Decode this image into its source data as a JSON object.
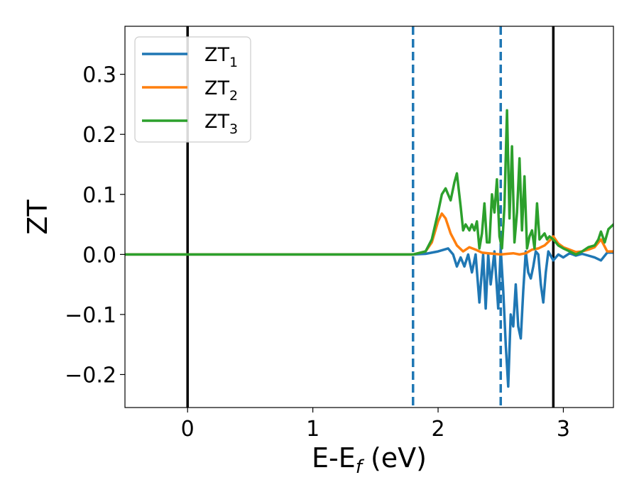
{
  "chart_data": {
    "type": "line",
    "xlabel": "E-E",
    "xlabel_sub": "f",
    "xlabel_unit": " (eV)",
    "ylabel": "ZT",
    "xlim": [
      -0.5,
      3.4
    ],
    "ylim": [
      -0.255,
      0.38
    ],
    "xticks": [
      0,
      1,
      2,
      3
    ],
    "xtick_labels": [
      "0",
      "1",
      "2",
      "3"
    ],
    "yticks": [
      -0.2,
      -0.1,
      0.0,
      0.1,
      0.2,
      0.3
    ],
    "ytick_labels": [
      "−0.2",
      "−0.1",
      "0.0",
      "0.1",
      "0.2",
      "0.3"
    ],
    "grid": false,
    "legend_position": "upper-left",
    "vlines": [
      {
        "x": 0.0,
        "style": "solid",
        "color": "#000000"
      },
      {
        "x": 1.8,
        "style": "dashed",
        "color": "#1f77b4"
      },
      {
        "x": 2.5,
        "style": "dashed",
        "color": "#1f77b4"
      },
      {
        "x": 2.92,
        "style": "solid",
        "color": "#000000"
      }
    ],
    "series": [
      {
        "name": "ZT",
        "sub": "1",
        "color": "#1f77b4",
        "x": [
          -0.5,
          1.8,
          1.9,
          2.0,
          2.08,
          2.12,
          2.15,
          2.18,
          2.21,
          2.24,
          2.27,
          2.3,
          2.33,
          2.36,
          2.38,
          2.4,
          2.42,
          2.45,
          2.48,
          2.5,
          2.52,
          2.54,
          2.56,
          2.58,
          2.6,
          2.62,
          2.64,
          2.66,
          2.68,
          2.7,
          2.72,
          2.74,
          2.76,
          2.78,
          2.8,
          2.82,
          2.84,
          2.86,
          2.88,
          2.92,
          2.96,
          3.0,
          3.05,
          3.1,
          3.15,
          3.2,
          3.25,
          3.3,
          3.35,
          3.4
        ],
        "y": [
          0,
          0,
          0.001,
          0.005,
          0.01,
          0.0,
          -0.02,
          -0.005,
          -0.02,
          0.0,
          -0.03,
          0.0,
          -0.08,
          0.0,
          -0.09,
          0.0,
          -0.05,
          0.005,
          -0.09,
          0.01,
          -0.06,
          -0.15,
          -0.22,
          -0.1,
          -0.12,
          -0.05,
          -0.12,
          -0.14,
          -0.06,
          0.005,
          -0.03,
          -0.04,
          -0.02,
          0.005,
          0.0,
          -0.05,
          -0.08,
          -0.03,
          0.005,
          -0.01,
          0.0,
          -0.005,
          0.002,
          -0.002,
          0.001,
          -0.002,
          -0.005,
          -0.01,
          0.003,
          0.003
        ]
      },
      {
        "name": "ZT",
        "sub": "2",
        "color": "#ff7f0e",
        "x": [
          -0.5,
          1.8,
          1.9,
          1.95,
          2.0,
          2.03,
          2.06,
          2.1,
          2.15,
          2.2,
          2.25,
          2.3,
          2.35,
          2.4,
          2.45,
          2.5,
          2.55,
          2.6,
          2.65,
          2.7,
          2.75,
          2.8,
          2.85,
          2.9,
          2.92,
          2.96,
          3.0,
          3.05,
          3.1,
          3.15,
          3.2,
          3.25,
          3.3,
          3.35,
          3.4
        ],
        "y": [
          0,
          0,
          0.005,
          0.02,
          0.055,
          0.068,
          0.06,
          0.035,
          0.015,
          0.005,
          0.012,
          0.008,
          0.003,
          0.002,
          0.001,
          0.0,
          0.001,
          0.002,
          0.0,
          0.002,
          0.008,
          0.01,
          0.015,
          0.025,
          0.03,
          0.018,
          0.012,
          0.008,
          0.004,
          0.005,
          0.008,
          0.012,
          0.025,
          0.005,
          0.005
        ]
      },
      {
        "name": "ZT",
        "sub": "3",
        "color": "#2ca02c",
        "x": [
          -0.5,
          1.8,
          1.9,
          1.95,
          2.0,
          2.03,
          2.06,
          2.08,
          2.1,
          2.13,
          2.15,
          2.18,
          2.2,
          2.22,
          2.25,
          2.27,
          2.29,
          2.31,
          2.33,
          2.35,
          2.37,
          2.39,
          2.41,
          2.43,
          2.45,
          2.47,
          2.49,
          2.51,
          2.53,
          2.55,
          2.57,
          2.59,
          2.61,
          2.63,
          2.65,
          2.67,
          2.69,
          2.71,
          2.73,
          2.75,
          2.77,
          2.79,
          2.81,
          2.83,
          2.85,
          2.87,
          2.89,
          2.92,
          2.96,
          3.0,
          3.05,
          3.1,
          3.15,
          3.2,
          3.25,
          3.28,
          3.3,
          3.33,
          3.36,
          3.4
        ],
        "y": [
          0,
          0,
          0.005,
          0.025,
          0.07,
          0.1,
          0.11,
          0.1,
          0.09,
          0.12,
          0.135,
          0.08,
          0.04,
          0.05,
          0.04,
          0.05,
          0.04,
          0.055,
          0.01,
          0.035,
          0.085,
          0.02,
          0.02,
          0.1,
          0.07,
          0.125,
          0.03,
          0.01,
          0.08,
          0.24,
          0.06,
          0.18,
          0.02,
          0.07,
          0.16,
          0.04,
          0.13,
          0.01,
          0.03,
          0.04,
          0.01,
          0.085,
          0.025,
          0.03,
          0.035,
          0.025,
          0.03,
          0.025,
          0.015,
          0.01,
          0.005,
          0.0,
          0.005,
          0.012,
          0.015,
          0.025,
          0.038,
          0.02,
          0.042,
          0.05
        ]
      }
    ]
  }
}
